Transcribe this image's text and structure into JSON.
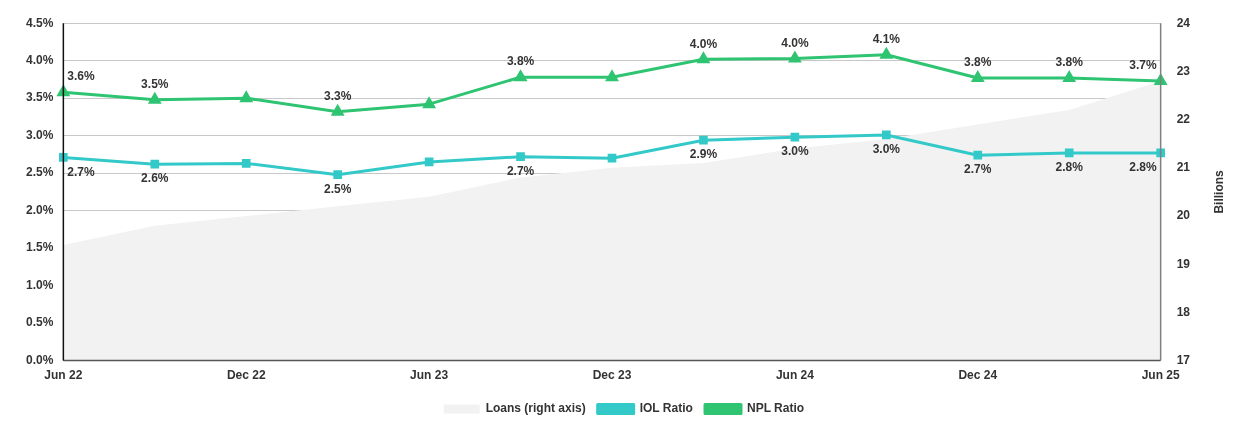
{
  "chart_data": {
    "type": "line",
    "categories": [
      "Jun 22",
      null,
      "Dec 22",
      null,
      "Jun 23",
      null,
      "Dec 23",
      null,
      "Jun 24",
      null,
      "Dec 24",
      null,
      "Jun 25"
    ],
    "series": [
      {
        "name": "Loans (right axis)",
        "type": "area",
        "axis": "y2",
        "color": "#f2f2f2",
        "values": [
          19.4,
          19.8,
          20.0,
          20.2,
          20.4,
          20.8,
          21.0,
          21.1,
          21.4,
          21.6,
          21.9,
          22.2,
          22.8
        ]
      },
      {
        "name": "IOL Ratio",
        "color": "#33c9c9",
        "marker": "square",
        "values": [
          2.71,
          2.62,
          2.63,
          2.48,
          2.65,
          2.72,
          2.7,
          2.94,
          2.98,
          3.01,
          2.74,
          2.77,
          2.77
        ],
        "value_labels": [
          "2.7%",
          "2.6%",
          null,
          "2.5%",
          null,
          "2.7%",
          null,
          "2.9%",
          "3.0%",
          "3.0%",
          "2.7%",
          "2.8%",
          "2.8%"
        ]
      },
      {
        "name": "NPL Ratio",
        "color": "#2ec471",
        "marker": "triangle",
        "values": [
          3.58,
          3.48,
          3.5,
          3.32,
          3.42,
          3.78,
          3.78,
          4.02,
          4.03,
          4.08,
          3.77,
          3.77,
          3.73
        ],
        "value_labels": [
          "3.6%",
          "3.5%",
          null,
          "3.3%",
          null,
          "3.8%",
          null,
          "4.0%",
          "4.0%",
          "4.1%",
          "3.8%",
          "3.8%",
          "3.7%"
        ]
      }
    ],
    "ylim": [
      0,
      4.5
    ],
    "yticks": [
      {
        "value": 0,
        "label": "0.0%"
      },
      {
        "value": 0.5,
        "label": "0.5%"
      },
      {
        "value": 1,
        "label": "1.0%"
      },
      {
        "value": 1.5,
        "label": "1.5%"
      },
      {
        "value": 2,
        "label": "2.0%"
      },
      {
        "value": 2.5,
        "label": "2.5%"
      },
      {
        "value": 3,
        "label": "3.0%"
      },
      {
        "value": 3.5,
        "label": "3.5%"
      },
      {
        "value": 4,
        "label": "4.0%"
      },
      {
        "value": 4.5,
        "label": "4.5%"
      }
    ],
    "y2lim": [
      17,
      24
    ],
    "y2ticks": [
      17,
      18,
      19,
      20,
      21,
      22,
      23,
      24
    ],
    "y2label": "Billions",
    "grid": "y",
    "legend": "bottom"
  }
}
